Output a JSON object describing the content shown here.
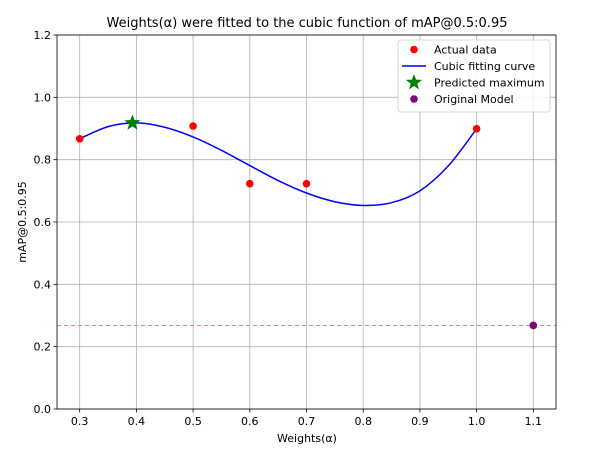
{
  "chart_data": {
    "type": "scatter",
    "title": "Weights(α) were fitted to the cubic function of mAP@0.5:0.95",
    "xlabel": "Weights(α)",
    "ylabel": "mAP@0.5:0.95",
    "xlim": [
      0.26,
      1.14
    ],
    "ylim": [
      0.0,
      1.2
    ],
    "xticks": [
      0.3,
      0.4,
      0.5,
      0.6,
      0.7,
      0.8,
      0.9,
      1.0,
      1.1
    ],
    "xtick_labels": [
      "0.3",
      "0.4",
      "0.5",
      "0.6",
      "0.7",
      "0.8",
      "0.9",
      "1.0",
      "1.1"
    ],
    "yticks": [
      0.0,
      0.2,
      0.4,
      0.6,
      0.8,
      1.0,
      1.2
    ],
    "ytick_labels": [
      "0.0",
      "0.2",
      "0.4",
      "0.6",
      "0.8",
      "1.0",
      "1.2"
    ],
    "grid": true,
    "legend_position": "top-right",
    "series": [
      {
        "name": "Actual data",
        "kind": "scatter",
        "color": "#ff0000",
        "x": [
          0.3,
          0.5,
          0.6,
          0.7,
          1.0
        ],
        "y": [
          0.867,
          0.908,
          0.723,
          0.723,
          0.899
        ]
      },
      {
        "name": "Cubic fitting curve",
        "kind": "line",
        "color": "#0000ff",
        "x": [
          0.3,
          0.35,
          0.4,
          0.45,
          0.5,
          0.55,
          0.6,
          0.65,
          0.7,
          0.75,
          0.8,
          0.85,
          0.9,
          0.95,
          1.0
        ],
        "y": [
          0.867,
          0.906,
          0.918,
          0.904,
          0.873,
          0.83,
          0.781,
          0.733,
          0.693,
          0.665,
          0.653,
          0.662,
          0.7,
          0.78,
          0.899
        ]
      },
      {
        "name": "Predicted maximum",
        "kind": "star",
        "color": "#008000",
        "x": [
          0.393
        ],
        "y": [
          0.918
        ]
      },
      {
        "name": "Original Model",
        "kind": "scatter",
        "color": "#800080",
        "x": [
          1.1
        ],
        "y": [
          0.268
        ]
      }
    ],
    "reference_line": {
      "y": 0.268,
      "color": "#f08080",
      "style": "dashed"
    }
  }
}
